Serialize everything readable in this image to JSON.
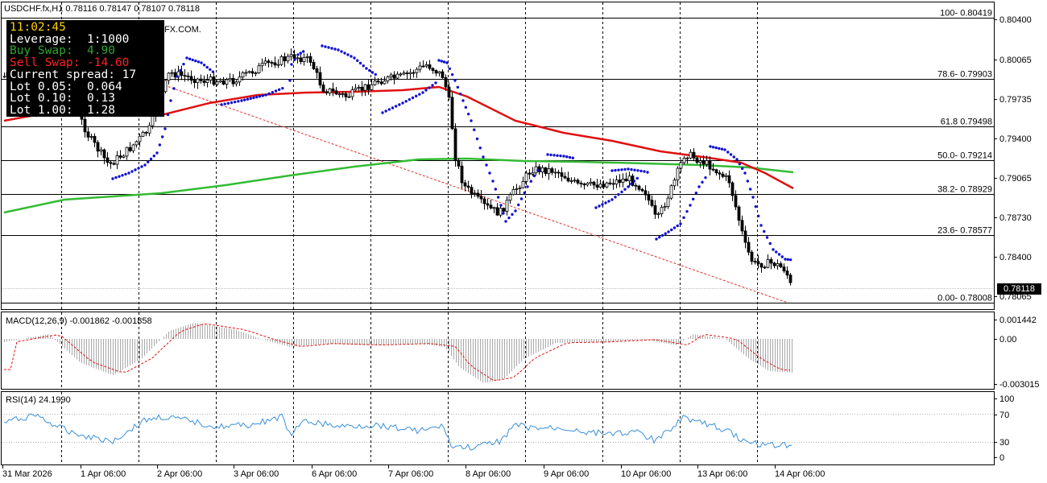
{
  "header": {
    "symbol_title": "USDCHF.fx,H1  0.78116  0.78147  0.78107  0.78118",
    "broker_fragment": "FX.COM."
  },
  "infobox": {
    "lines": [
      {
        "text": "11:02:45",
        "color": "#ffd200"
      },
      {
        "text": "Leverage:  1:1000",
        "color": "#ffffff"
      },
      {
        "text": "Buy Swap:  4.90",
        "color": "#2fa52f"
      },
      {
        "text": "Sell Swap: -14.60",
        "color": "#ff2020"
      },
      {
        "text": "Current spread: 17",
        "color": "#ffffff"
      },
      {
        "text": "Lot 0.05:  0.064",
        "color": "#ffffff"
      },
      {
        "text": "Lot 0.10:  0.13",
        "color": "#ffffff"
      },
      {
        "text": "Lot 1.00:  1.28",
        "color": "#ffffff"
      }
    ]
  },
  "price_axis": {
    "labels": [
      "0.80400",
      "0.80065",
      "0.79735",
      "0.79400",
      "0.79065",
      "0.78730",
      "0.78400",
      "0.78065"
    ],
    "current_price": "0.78118",
    "range": [
      0.7792,
      0.8058
    ]
  },
  "fibonacci": [
    {
      "label": "100- 0.80419",
      "price": 0.80419
    },
    {
      "label": "78.6- 0.79903",
      "price": 0.79903
    },
    {
      "label": "61.8 0.79498",
      "price": 0.79498
    },
    {
      "label": "50.0- 0.79214",
      "price": 0.79214
    },
    {
      "label": "38.2- 0.78929",
      "price": 0.78929
    },
    {
      "label": "23.6- 0.78577",
      "price": 0.78577
    },
    {
      "label": "0.00- 0.78008",
      "price": 0.78008
    }
  ],
  "macd": {
    "title": "MACD(12,26,9) -0.001862 -0.001858",
    "axis_labels": [
      "0.001442",
      "0.00",
      "-0.003015"
    ]
  },
  "rsi": {
    "title": "RSI(14) 24.1990",
    "axis_labels": [
      "100",
      "70",
      "30",
      "0"
    ]
  },
  "time_axis": {
    "labels": [
      "31 Mar 2026",
      "1 Apr 06:00",
      "2 Apr 06:00",
      "3 Apr 06:00",
      "6 Apr 06:00",
      "7 Apr 06:00",
      "8 Apr 06:00",
      "9 Apr 06:00",
      "10 Apr 06:00",
      "13 Apr 06:00",
      "14 Apr 06:00"
    ]
  },
  "colors": {
    "ma_fast": "#e01010",
    "ma_slow": "#33bb33",
    "sar": "#1010d0",
    "trendline": "#e03030",
    "rsi_line": "#3a8fd8",
    "macd_signal": "#e01010"
  },
  "chart_data": {
    "type": "line",
    "symbol": "USDCHF.fx",
    "timeframe": "H1",
    "ohlc": {
      "open": 0.78116,
      "high": 0.78147,
      "low": 0.78107,
      "close": 0.78118
    },
    "ma_fast": [
      0.795,
      0.796,
      0.7967,
      0.7972,
      0.7976,
      0.7982,
      0.7977,
      0.7981,
      0.7983,
      0.796,
      0.7948,
      0.794,
      0.7934,
      0.7925,
      0.792,
      0.7895
    ],
    "ma_slow": [
      0.788,
      0.7888,
      0.789,
      0.7898,
      0.7907,
      0.7915,
      0.7922,
      0.7921,
      0.792,
      0.7919,
      0.7917,
      0.7913
    ],
    "rsi_last": 24.199,
    "macd_last": -0.001862,
    "macd_signal_last": -0.001858
  }
}
